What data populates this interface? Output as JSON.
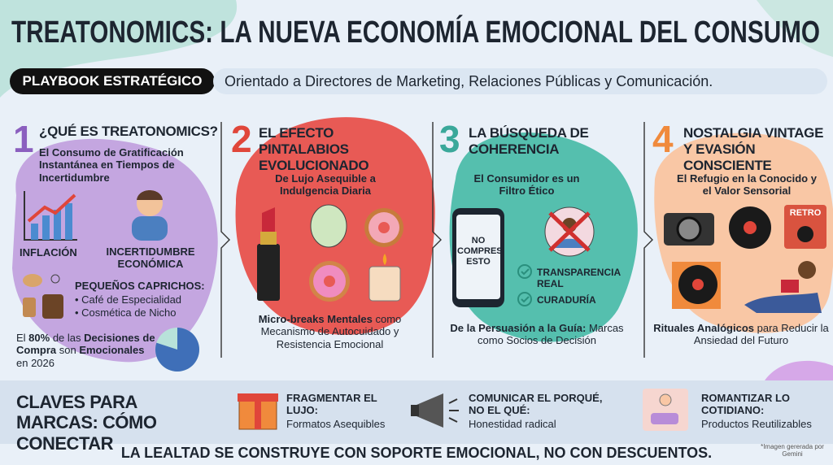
{
  "header": {
    "title": "TREATONOMICS: LA NUEVA ECONOMÍA EMOCIONAL DEL CONSUMO",
    "badge": "PLAYBOOK ESTRATÉGICO",
    "subtitle": "Orientado a Directores de Marketing, Relaciones Públicas y Comunicación."
  },
  "sections": [
    {
      "number": "1",
      "title": "¿QUÉ ES TREATONOMICS?",
      "subtitle": "El Consumo de Gratificación Instantánea en Tiempos de Incertidumbre",
      "icons": [
        "INFLACIÓN",
        "INCERTIDUMBRE ECONÓMICA"
      ],
      "list_title": "PEQUEÑOS CAPRICHOS:",
      "list": [
        "Café de Especialidad",
        "Cosmética de Nicho"
      ],
      "stat": {
        "prefix": "El ",
        "value": 80,
        "value_label": "80%",
        "middle": " de las ",
        "bold_1": "Decisiones",
        "bold_2": "de Compra",
        "mid_2": " son ",
        "bold_3": "Emocionales",
        "suffix": " en 2026"
      }
    },
    {
      "number": "2",
      "title": "EL EFECTO PINTALABIOS EVOLUCIONADO",
      "subtitle": "De Lujo Asequible a Indulgencia Diaria",
      "footer_bold": "Micro-breaks Mentales",
      "footer_text": " como Mecanismo de Autocuidado y Resistencia Emocional"
    },
    {
      "number": "3",
      "title": "LA BÚSQUEDA DE COHERENCIA",
      "subtitle": "El Consumidor es un Filtro Ético",
      "phone_text": "NO COMPRES ESTO",
      "checks": [
        "TRANSPARENCIA REAL",
        "CURADURÍA"
      ],
      "footer_bold": "De la Persuasión a la Guía:",
      "footer_text": " Marcas como Socios de Decisión"
    },
    {
      "number": "4",
      "title": "NOSTALGIA VINTAGE Y EVASIÓN CONSCIENTE",
      "subtitle": "El Refugio en la Conocido y el Valor Sensorial",
      "retro": "RETRO",
      "footer_bold": "Rituales Analógicos",
      "footer_text": " para Reducir la Ansiedad del Futuro"
    }
  ],
  "keys": {
    "title": "CLAVES PARA MARCAS: CÓMO CONECTAR",
    "items": [
      {
        "title": "FRAGMENTAR EL LUJO:",
        "text": "Formatos Asequibles"
      },
      {
        "title": "COMUNICAR EL PORQUÉ, NO EL QUÉ:",
        "text": "Honestidad radical"
      },
      {
        "title": "ROMANTIZAR LO COTIDIANO:",
        "text": "Productos Reutilizables"
      }
    ]
  },
  "footer": {
    "tagline": "LA LEALTAD SE CONSTRUYE CON SOPORTE EMOCIONAL, NO CON DESCUENTOS.",
    "credit": "*Imagen gererada por Gemini"
  }
}
